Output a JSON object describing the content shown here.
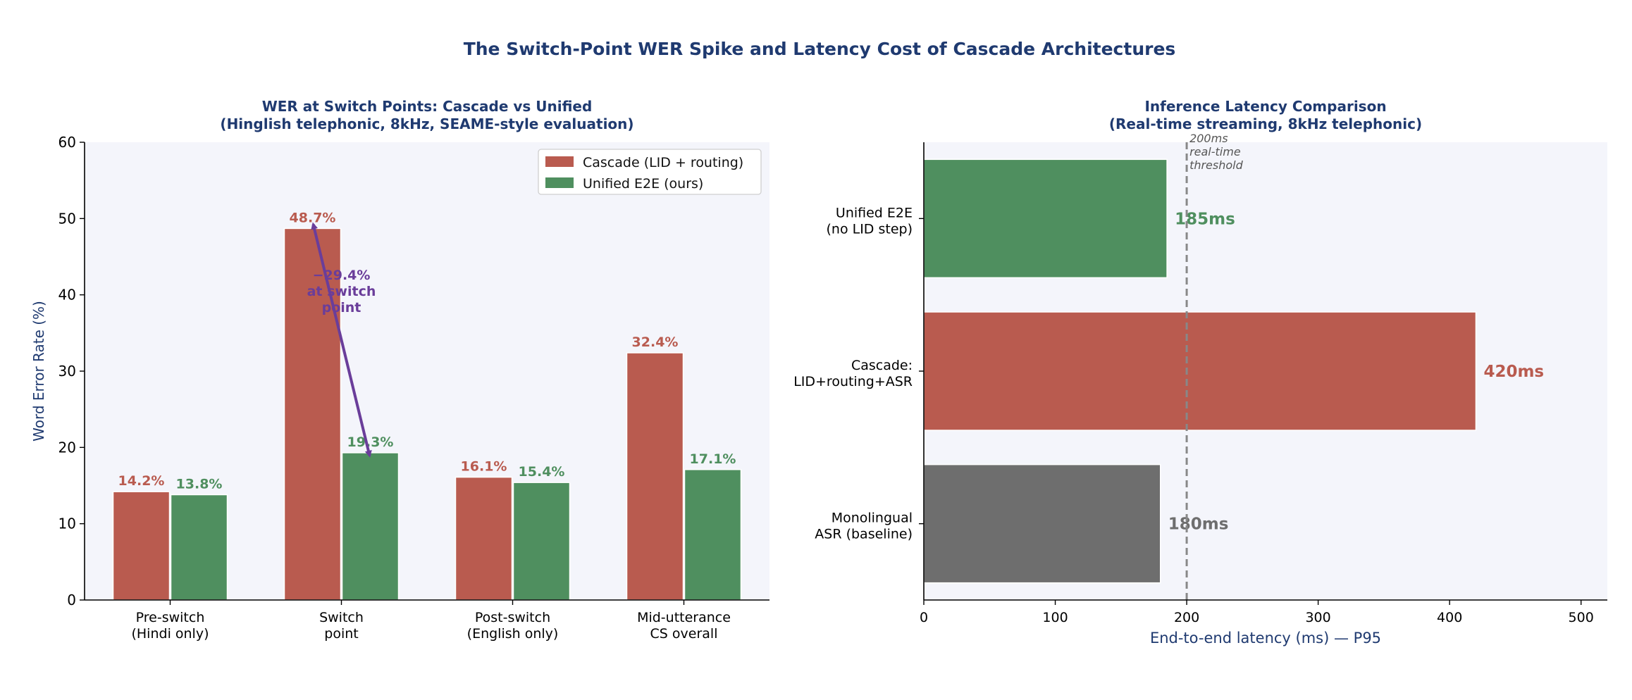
{
  "figure": {
    "title": "The Switch-Point WER Spike and Latency Cost of Cascade Architectures"
  },
  "colors": {
    "cascade": "#b95b4f",
    "unified": "#4f8f5f",
    "mono": "#6e6e6e",
    "title": "#1f3a70",
    "annotation": "#6a3d9a",
    "panel_bg": "#f4f5fb",
    "threshold": "#888888"
  },
  "chart_data": [
    {
      "type": "bar",
      "title": "WER at Switch Points: Cascade vs Unified",
      "subtitle": "(Hinglish telephonic, 8kHz, SEAME-style evaluation)",
      "xlabel": "",
      "ylabel": "Word Error Rate (%)",
      "ylim": [
        0,
        60
      ],
      "yticks": [
        0,
        10,
        20,
        30,
        40,
        50,
        60
      ],
      "categories": [
        "Pre-switch\n(Hindi only)",
        "Switch\npoint",
        "Post-switch\n(English only)",
        "Mid-utterance\nCS overall"
      ],
      "series": [
        {
          "name": "Cascade (LID + routing)",
          "values": [
            14.2,
            48.7,
            16.1,
            32.4
          ],
          "labels": [
            "14.2%",
            "48.7%",
            "16.1%",
            "32.4%"
          ]
        },
        {
          "name": "Unified E2E (ours)",
          "values": [
            13.8,
            19.3,
            15.4,
            17.1
          ],
          "labels": [
            "13.8%",
            "19.3%",
            "15.4%",
            "17.1%"
          ]
        }
      ],
      "legend_position": "top-right",
      "grid": false,
      "annotation": {
        "text": "−29.4%\nat switch\npoint",
        "from_value": 48.7,
        "to_value": 19.3,
        "category": "Switch\npoint"
      }
    },
    {
      "type": "bar",
      "orientation": "horizontal",
      "title": "Inference Latency Comparison",
      "subtitle": "(Real-time streaming, 8kHz telephonic)",
      "xlabel": "End-to-end latency (ms) — P95",
      "ylabel": "",
      "xlim": [
        0,
        520
      ],
      "xticks": [
        0,
        100,
        200,
        300,
        400,
        500
      ],
      "categories": [
        "Unified E2E\n(no LID step)",
        "Cascade:\nLID+routing+ASR",
        "Monolingual\nASR (baseline)"
      ],
      "values": [
        185,
        420,
        180
      ],
      "labels": [
        "185ms",
        "420ms",
        "180ms"
      ],
      "bar_colors": [
        "unified",
        "cascade",
        "mono"
      ],
      "threshold": {
        "value": 200,
        "label": "200ms\nreal-time\nthreshold"
      },
      "grid": false
    }
  ]
}
